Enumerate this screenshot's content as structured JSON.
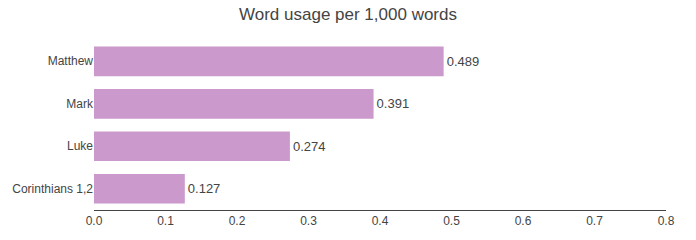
{
  "chart_data": {
    "type": "bar",
    "orientation": "horizontal",
    "title": "Word usage per 1,000 words",
    "categories": [
      "Matthew",
      "Mark",
      "Luke",
      "Corinthians 1,2"
    ],
    "values": [
      0.489,
      0.391,
      0.274,
      0.127
    ],
    "color": "#CC99CC",
    "xlim": [
      0,
      0.8
    ],
    "xticks": [
      {
        "value": 0,
        "label": "0.0"
      },
      0.1,
      0.2,
      0.3,
      0.4,
      0.5,
      0.6,
      0.7,
      0.8
    ],
    "grid": false,
    "data_labels": true
  }
}
